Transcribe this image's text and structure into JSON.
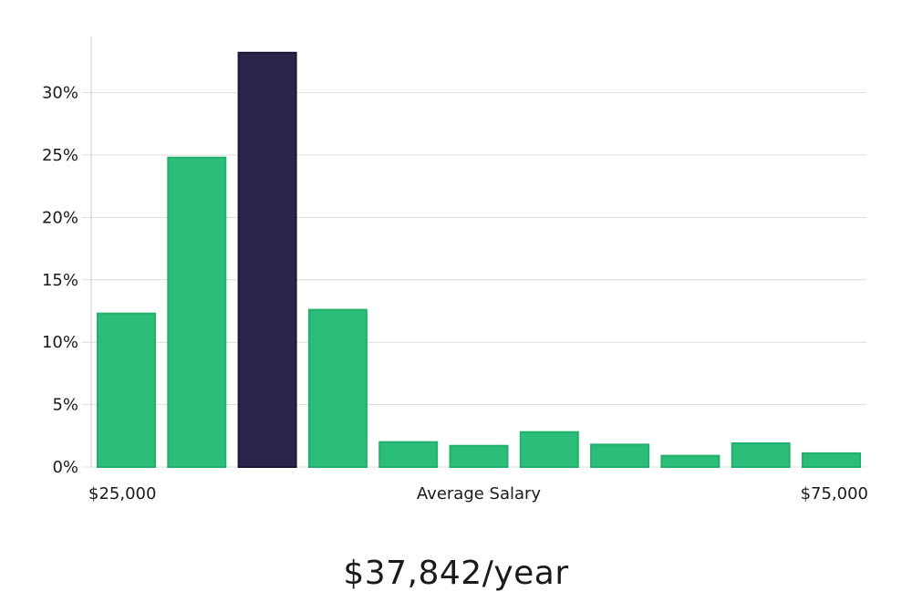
{
  "chart_data": {
    "type": "bar",
    "title": "",
    "xlabel": "Average Salary",
    "ylabel": "",
    "x_range_labels": {
      "min": "$25,000",
      "max": "$75,000"
    },
    "y_ticks": [
      "0%",
      "5%",
      "10%",
      "15%",
      "20%",
      "25%",
      "30%"
    ],
    "ylim": [
      0,
      34.5
    ],
    "grid": true,
    "values": [
      12.3,
      24.8,
      33.2,
      12.6,
      2.0,
      1.7,
      2.8,
      1.8,
      0.9,
      1.9,
      1.1
    ],
    "highlight_index": 2,
    "colors": {
      "bar": "#2bbd7a",
      "bar_border": "#22b06c",
      "highlight": "#29264a",
      "highlight_border": "#1a1838",
      "grid": "#dcdcdc",
      "axis": "#cccccc"
    }
  },
  "salary_text": "$37,842/year"
}
